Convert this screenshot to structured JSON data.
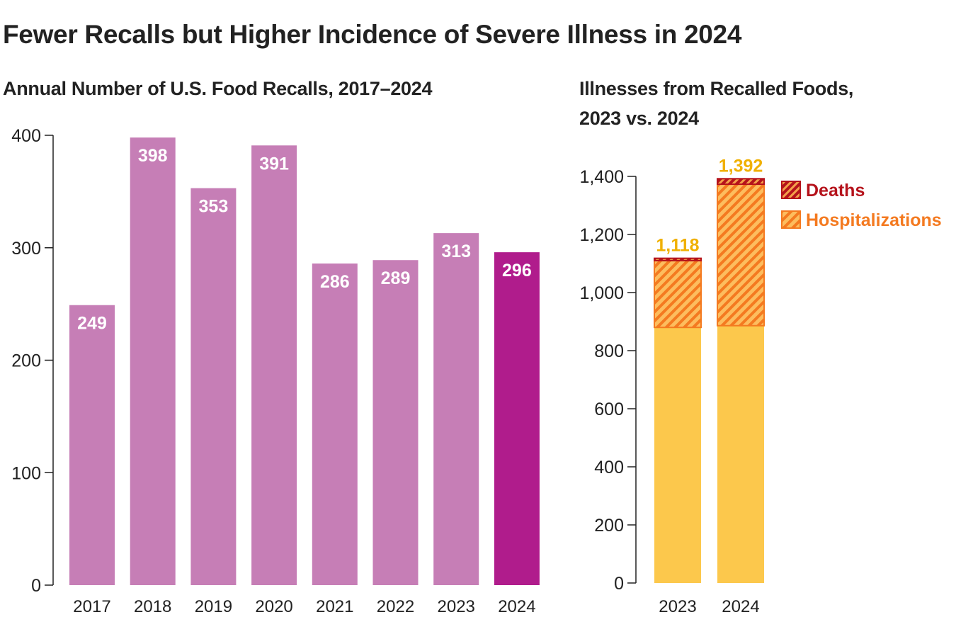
{
  "title": "Fewer Recalls but Higher Incidence of Severe Illness in 2024",
  "chart_data": [
    {
      "type": "bar",
      "title": "Annual Number of U.S. Food Recalls, 2017–2024",
      "categories": [
        "2017",
        "2018",
        "2019",
        "2020",
        "2021",
        "2022",
        "2023",
        "2024"
      ],
      "values": [
        249,
        398,
        353,
        391,
        286,
        289,
        313,
        296
      ],
      "value_labels": [
        "249",
        "398",
        "353",
        "391",
        "286",
        "289",
        "313",
        "296"
      ],
      "ylim": [
        0,
        400
      ],
      "yticks": [
        0,
        100,
        200,
        300,
        400
      ],
      "ytick_labels": [
        "0",
        "100",
        "200",
        "300",
        "400"
      ],
      "grid": false,
      "colors": {
        "default": "#c67eb6",
        "highlight": "#b01c8c"
      },
      "highlight_category": "2024"
    },
    {
      "type": "bar",
      "stacked": true,
      "title_lines": [
        "Illnesses from Recalled Foods,",
        "2023 vs. 2024"
      ],
      "categories": [
        "2023",
        "2024"
      ],
      "totals": [
        1118,
        1392
      ],
      "total_labels": [
        "1,118",
        "1,392"
      ],
      "series": [
        {
          "key": "other",
          "values": [
            880,
            886
          ],
          "color": "#fcc84c"
        },
        {
          "name": "Hospitalizations",
          "values": [
            230,
            487
          ],
          "color": "#f47a20",
          "pattern": "hatched"
        },
        {
          "name": "Deaths",
          "values": [
            8,
            19
          ],
          "color": "#b5121b",
          "pattern": "hatched"
        }
      ],
      "ylim": [
        0,
        1400
      ],
      "yticks": [
        0,
        200,
        400,
        600,
        800,
        1000,
        1200,
        1400
      ],
      "ytick_labels": [
        "0",
        "200",
        "400",
        "600",
        "800",
        "1,000",
        "1,200",
        "1,400"
      ],
      "legend_placement": "top-right",
      "total_label_color": "#f0b000",
      "grid": false
    }
  ]
}
